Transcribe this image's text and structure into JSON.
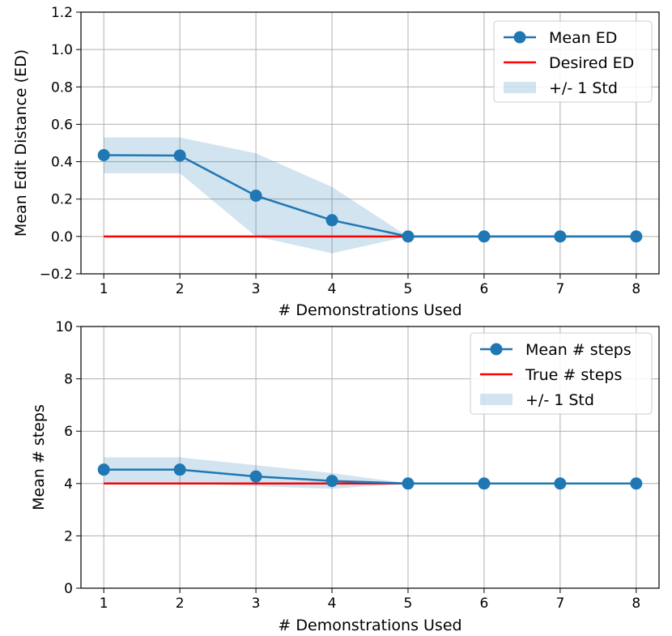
{
  "chart_data": [
    {
      "type": "line",
      "xlabel": "# Demonstrations Used",
      "ylabel": "Mean Edit Distance (ED)",
      "xlim": [
        0.7,
        8.3
      ],
      "ylim": [
        -0.2,
        1.2
      ],
      "x_ticks": [
        "1",
        "2",
        "3",
        "4",
        "5",
        "6",
        "7",
        "8"
      ],
      "y_ticks": [
        "−0.2",
        "0.0",
        "0.2",
        "0.4",
        "0.6",
        "0.8",
        "1.0",
        "1.2"
      ],
      "grid": true,
      "legend_position": "top-right",
      "x": [
        1,
        2,
        3,
        4,
        5,
        6,
        7,
        8
      ],
      "series": [
        {
          "name": "Mean ED",
          "kind": "line-marker",
          "color": "#1f77b4",
          "values": [
            0.435,
            0.433,
            0.218,
            0.087,
            0.0,
            0.0,
            0.0,
            0.0
          ]
        },
        {
          "name": "Desired ED",
          "kind": "line",
          "color": "#ff0000",
          "values": [
            0,
            0,
            0,
            0,
            0,
            0,
            0,
            0
          ]
        },
        {
          "name": "+/- 1 Std",
          "kind": "band",
          "color": "#1f77b4",
          "lower": [
            0.338,
            0.338,
            0.0,
            -0.09,
            0.0,
            0.0,
            0.0,
            0.0
          ],
          "upper": [
            0.53,
            0.53,
            0.445,
            0.265,
            0.0,
            0.0,
            0.0,
            0.0
          ]
        }
      ]
    },
    {
      "type": "line",
      "xlabel": "# Demonstrations Used",
      "ylabel": "Mean # steps",
      "xlim": [
        0.7,
        8.3
      ],
      "ylim": [
        0,
        10
      ],
      "x_ticks": [
        "1",
        "2",
        "3",
        "4",
        "5",
        "6",
        "7",
        "8"
      ],
      "y_ticks": [
        "0",
        "2",
        "4",
        "6",
        "8",
        "10"
      ],
      "grid": true,
      "legend_position": "top-right",
      "x": [
        1,
        2,
        3,
        4,
        5,
        6,
        7,
        8
      ],
      "series": [
        {
          "name": "Mean # steps",
          "kind": "line-marker",
          "color": "#1f77b4",
          "values": [
            4.53,
            4.53,
            4.27,
            4.1,
            4.0,
            4.0,
            4.0,
            4.0
          ]
        },
        {
          "name": "True # steps",
          "kind": "line",
          "color": "#ff0000",
          "values": [
            4,
            4,
            4,
            4,
            4,
            4,
            4,
            4
          ]
        },
        {
          "name": "+/- 1 Std",
          "kind": "band",
          "color": "#1f77b4",
          "lower": [
            4.0,
            4.0,
            3.9,
            3.8,
            4.0,
            4.0,
            4.0,
            4.0
          ],
          "upper": [
            5.0,
            5.0,
            4.7,
            4.4,
            4.0,
            4.0,
            4.0,
            4.0
          ]
        }
      ]
    }
  ]
}
